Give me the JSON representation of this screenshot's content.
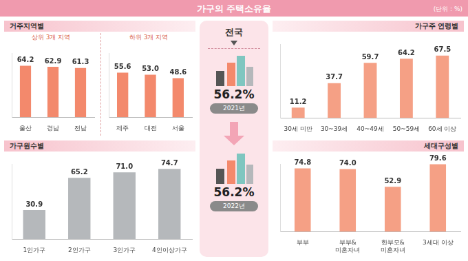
{
  "header": {
    "title": "가구의 주택소유율",
    "unit": "(단위 : %)"
  },
  "national": {
    "title": "전국",
    "items": [
      {
        "value_label": "56.2%",
        "year": "2021년"
      },
      {
        "value_label": "56.2%",
        "year": "2022년"
      }
    ]
  },
  "chart_data": [
    {
      "type": "bar",
      "title": "거주지역별",
      "annotations": [
        "상위 3개 지역"
      ],
      "categories": [
        "울산",
        "경남",
        "전남"
      ],
      "values": [
        64.2,
        62.9,
        61.3
      ],
      "value_labels": [
        "64.2",
        "62.9",
        "61.3"
      ],
      "color": "#f3896c",
      "ylim": [
        0,
        80
      ],
      "grid": false,
      "data_labels": true,
      "tick_labels": "x"
    },
    {
      "type": "bar",
      "annotations": [
        "하위 3개 지역"
      ],
      "categories": [
        "제주",
        "대전",
        "서울"
      ],
      "values": [
        55.6,
        53.0,
        48.6
      ],
      "value_labels": [
        "55.6",
        "53.0",
        "48.6"
      ],
      "color": "#f3896c",
      "ylim": [
        0,
        80
      ],
      "grid": false,
      "data_labels": true,
      "tick_labels": "x"
    },
    {
      "type": "bar",
      "title": "가구원수별",
      "categories": [
        "1인가구",
        "2인가구",
        "3인가구",
        "4인이상가구"
      ],
      "values": [
        30.9,
        65.2,
        71.0,
        74.7
      ],
      "value_labels": [
        "30.9",
        "65.2",
        "71.0",
        "74.7"
      ],
      "color": "#b5b8bb",
      "ylim": [
        0,
        80
      ],
      "grid": false,
      "data_labels": true,
      "tick_labels": "x"
    },
    {
      "type": "bar",
      "title": "가구주 연령별",
      "categories": [
        "30세 미만",
        "30~39세",
        "40~49세",
        "50~59세",
        "60세 이상"
      ],
      "values": [
        11.2,
        37.7,
        59.7,
        64.2,
        67.5
      ],
      "value_labels": [
        "11.2",
        "37.7",
        "59.7",
        "64.2",
        "67.5"
      ],
      "color": "#f5a085",
      "ylim": [
        0,
        80
      ],
      "grid": false,
      "data_labels": true,
      "tick_labels": "x"
    },
    {
      "type": "bar",
      "title": "세대구성별",
      "categories": [
        "부부",
        "부부&미혼자녀",
        "한부모&미혼자녀",
        "3세대 이상"
      ],
      "values": [
        74.8,
        74.0,
        52.9,
        79.6
      ],
      "value_labels": [
        "74.8",
        "74.0",
        "52.9",
        "79.6"
      ],
      "color": "#f5a085",
      "ylim": [
        0,
        80
      ],
      "grid": false,
      "data_labels": true,
      "tick_labels": "x"
    }
  ]
}
